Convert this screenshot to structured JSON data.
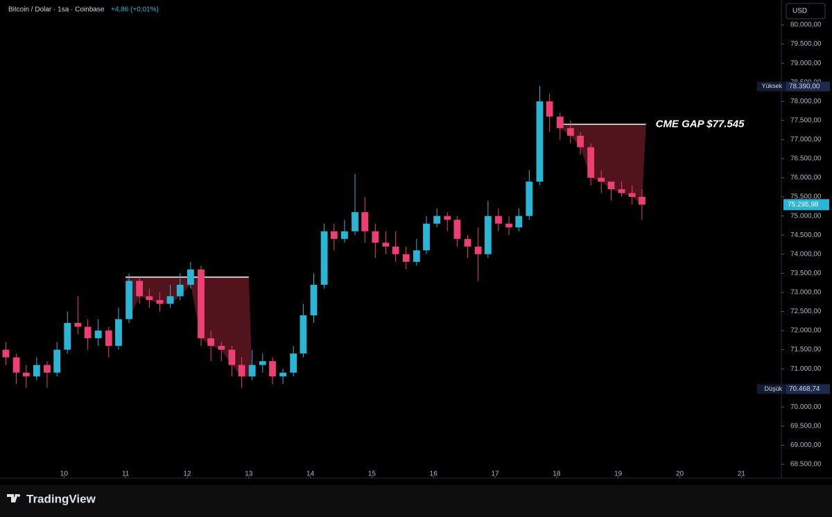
{
  "chart_data": {
    "type": "candlestick",
    "symbol": "Bitcoin / Dolar · 1sa · Coinbase",
    "change": "+4,86 (+0,01%)",
    "currency": "USD",
    "brand": "TradingView",
    "up_color": "#2bb5d4",
    "down_color": "#ec3f73",
    "grid": false,
    "x": [
      9.0,
      9.17,
      9.33,
      9.5,
      9.67,
      9.83,
      10.0,
      10.17,
      10.33,
      10.5,
      10.67,
      10.83,
      11.0,
      11.17,
      11.33,
      11.5,
      11.67,
      11.83,
      12.0,
      12.17,
      12.33,
      12.5,
      12.67,
      12.83,
      13.0,
      13.17,
      13.33,
      13.5,
      13.67,
      13.83,
      14.0,
      14.17,
      14.33,
      14.5,
      14.67,
      14.83,
      15.0,
      15.17,
      15.33,
      15.5,
      15.67,
      15.83,
      16.0,
      16.17,
      16.33,
      16.5,
      16.67,
      16.83,
      17.0,
      17.17,
      17.33,
      17.5,
      17.67,
      17.83,
      18.0,
      18.17,
      18.33,
      18.5,
      18.67,
      18.83,
      19.0,
      19.17,
      19.33
    ],
    "open": [
      71500,
      71300,
      70900,
      70800,
      71100,
      70900,
      71500,
      72200,
      72100,
      71800,
      72000,
      71600,
      72300,
      73300,
      72900,
      72800,
      72700,
      72900,
      73200,
      73600,
      71800,
      71600,
      71500,
      71100,
      70800,
      71100,
      71200,
      70800,
      70900,
      71400,
      72400,
      73200,
      74600,
      74400,
      74600,
      75100,
      74600,
      74300,
      74200,
      74000,
      73800,
      74100,
      74800,
      75000,
      74900,
      74400,
      74200,
      74000,
      75000,
      74800,
      74700,
      75000,
      75900,
      78000,
      77600,
      77300,
      77100,
      76800,
      76000,
      75900,
      75700,
      75600,
      75500
    ],
    "high": [
      71700,
      71400,
      71100,
      71300,
      71200,
      71700,
      72500,
      72900,
      72300,
      72300,
      72100,
      72600,
      73500,
      73400,
      73100,
      73000,
      73200,
      73500,
      73800,
      73700,
      72000,
      71700,
      71600,
      71300,
      71500,
      71400,
      71300,
      71000,
      71600,
      72700,
      73500,
      74800,
      74800,
      74900,
      76100,
      75500,
      74800,
      74600,
      74600,
      74200,
      74400,
      75000,
      75200,
      75100,
      75000,
      74500,
      74700,
      75400,
      75200,
      75000,
      75200,
      76200,
      78400,
      78200,
      77700,
      77500,
      77200,
      76900,
      76200,
      75900,
      75900,
      75800,
      75700
    ],
    "low": [
      71100,
      70600,
      70500,
      70700,
      70500,
      70800,
      71400,
      71900,
      71500,
      71600,
      71300,
      71500,
      72200,
      72700,
      72600,
      72500,
      72600,
      72800,
      73100,
      71600,
      71200,
      71200,
      70800,
      70500,
      70700,
      70900,
      70600,
      70600,
      70800,
      71300,
      72200,
      73100,
      74100,
      74300,
      74500,
      74300,
      73900,
      74000,
      73800,
      73600,
      73700,
      74000,
      74700,
      74600,
      74200,
      73900,
      73300,
      73900,
      74600,
      74500,
      74600,
      74900,
      75800,
      77200,
      77000,
      76900,
      76600,
      75800,
      75600,
      75400,
      75500,
      75300,
      74900
    ],
    "close": [
      71300,
      70900,
      70800,
      71100,
      70900,
      71500,
      72200,
      72100,
      71800,
      72000,
      71600,
      72300,
      73300,
      72900,
      72800,
      72700,
      72900,
      73200,
      73600,
      71800,
      71600,
      71500,
      71100,
      70800,
      71100,
      71200,
      70800,
      70900,
      71400,
      72400,
      73200,
      74600,
      74400,
      74600,
      75100,
      74600,
      74300,
      74200,
      74000,
      73800,
      74100,
      74800,
      75000,
      74900,
      74400,
      74200,
      74000,
      75000,
      74800,
      74700,
      75000,
      75900,
      78000,
      77600,
      77300,
      77100,
      76800,
      76000,
      75900,
      75700,
      75600,
      75500,
      75295.98
    ],
    "xlim": [
      8.96,
      21.65
    ],
    "xticks": [
      10,
      11,
      12,
      13,
      14,
      15,
      16,
      17,
      18,
      19,
      20,
      21
    ],
    "ylim": [
      68137,
      80653
    ],
    "yticks": [
      {
        "value": 68500,
        "label": "68.500,00"
      },
      {
        "value": 69000,
        "label": "69.000,00"
      },
      {
        "value": 69500,
        "label": "69.500,00"
      },
      {
        "value": 70000,
        "label": "70.000,00"
      },
      {
        "value": 70500,
        "label": "70.500,00"
      },
      {
        "value": 71000,
        "label": "71.000,00"
      },
      {
        "value": 71500,
        "label": "71.500,00"
      },
      {
        "value": 72000,
        "label": "72.000,00"
      },
      {
        "value": 72500,
        "label": "72.500,00"
      },
      {
        "value": 73000,
        "label": "73.000,00"
      },
      {
        "value": 73500,
        "label": "73.500,00"
      },
      {
        "value": 74000,
        "label": "74.000,00"
      },
      {
        "value": 74500,
        "label": "74.500,00"
      },
      {
        "value": 75000,
        "label": "75.000,00"
      },
      {
        "value": 75500,
        "label": "75.500,00"
      },
      {
        "value": 76000,
        "label": "76.000,00"
      },
      {
        "value": 76500,
        "label": "76.500,00"
      },
      {
        "value": 77000,
        "label": "77.000,00"
      },
      {
        "value": 77500,
        "label": "77.500,00"
      },
      {
        "value": 78000,
        "label": "78.000,00"
      },
      {
        "value": 78500,
        "label": "78.500,00"
      },
      {
        "value": 79000,
        "label": "79.000,00"
      },
      {
        "value": 79500,
        "label": "79.500,00"
      },
      {
        "value": 80000,
        "label": "80.000,00"
      }
    ],
    "price_labels": [
      {
        "name": "Yüksek",
        "value": 78390,
        "label": "78.390,00"
      },
      {
        "name": "Düşük",
        "value": 70468.74,
        "label": "70.468,74"
      }
    ],
    "last_price": {
      "value": 75295.98,
      "label": "75.295,98",
      "color": "#2bb5d4"
    },
    "gaps": [
      {
        "level": 73400,
        "from": 11.0,
        "to": 13.0
      },
      {
        "level": 77400,
        "from": 18.0,
        "to": 19.45,
        "label": "CME GAP $77.545"
      }
    ],
    "gap_fill": "#5a1620"
  }
}
